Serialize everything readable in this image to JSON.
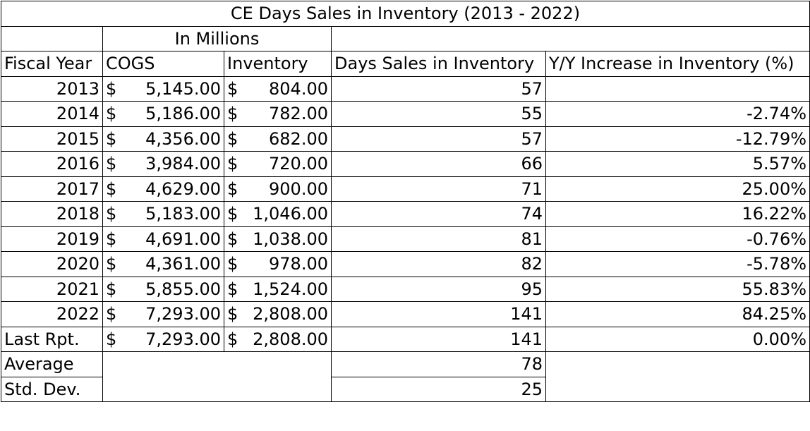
{
  "title": "CE Days Sales in Inventory (2013 - 2022)",
  "units_label": "In Millions",
  "headers": {
    "fiscal_year": "Fiscal Year",
    "cogs": "COGS",
    "inventory": "Inventory",
    "dsi": "Days Sales in Inventory",
    "yoy": "Y/Y Increase in Inventory (%)"
  },
  "currency_symbol": "$",
  "rows": [
    {
      "year": "2013",
      "cogs": "5,145.00",
      "inventory": "804.00",
      "dsi": "57",
      "yoy": ""
    },
    {
      "year": "2014",
      "cogs": "5,186.00",
      "inventory": "782.00",
      "dsi": "55",
      "yoy": "-2.74%"
    },
    {
      "year": "2015",
      "cogs": "4,356.00",
      "inventory": "682.00",
      "dsi": "57",
      "yoy": "-12.79%"
    },
    {
      "year": "2016",
      "cogs": "3,984.00",
      "inventory": "720.00",
      "dsi": "66",
      "yoy": "5.57%"
    },
    {
      "year": "2017",
      "cogs": "4,629.00",
      "inventory": "900.00",
      "dsi": "71",
      "yoy": "25.00%"
    },
    {
      "year": "2018",
      "cogs": "5,183.00",
      "inventory": "1,046.00",
      "dsi": "74",
      "yoy": "16.22%"
    },
    {
      "year": "2019",
      "cogs": "4,691.00",
      "inventory": "1,038.00",
      "dsi": "81",
      "yoy": "-0.76%"
    },
    {
      "year": "2020",
      "cogs": "4,361.00",
      "inventory": "978.00",
      "dsi": "82",
      "yoy": "-5.78%"
    },
    {
      "year": "2021",
      "cogs": "5,855.00",
      "inventory": "1,524.00",
      "dsi": "95",
      "yoy": "55.83%"
    },
    {
      "year": "2022",
      "cogs": "7,293.00",
      "inventory": "2,808.00",
      "dsi": "141",
      "yoy": "84.25%"
    },
    {
      "year": "Last Rpt.",
      "cogs": "7,293.00",
      "inventory": "2,808.00",
      "dsi": "141",
      "yoy": "0.00%"
    }
  ],
  "summary": [
    {
      "label": "Average",
      "dsi": "78"
    },
    {
      "label": "Std. Dev.",
      "dsi": "25"
    }
  ]
}
